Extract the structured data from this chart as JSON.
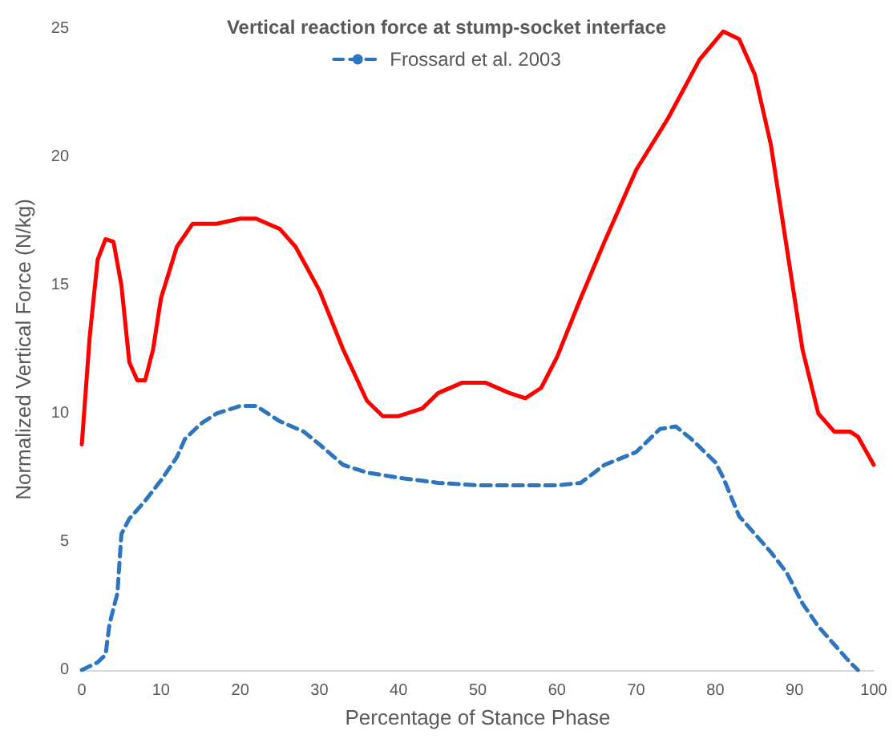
{
  "chart_data": {
    "type": "line",
    "title": "Vertical reaction force at stump-socket interface",
    "xlabel": "Percentage of Stance Phase",
    "ylabel": "Normalized Vertical Force (N/kg)",
    "xlim": [
      0,
      100
    ],
    "xticks": [
      0,
      10,
      20,
      30,
      40,
      50,
      60,
      70,
      80,
      90,
      100
    ],
    "ylim": [
      0,
      25
    ],
    "yticks": [
      0,
      5,
      10,
      15,
      20,
      25
    ],
    "grid": false,
    "legend": "top",
    "marker": "none",
    "series": [
      {
        "color": "#ff0000",
        "line_style": "solid",
        "x": [
          0,
          1,
          2,
          3,
          4,
          5,
          6,
          7,
          8,
          9,
          10,
          12,
          14,
          17,
          20,
          22,
          25,
          27,
          30,
          33,
          36,
          38,
          40,
          43,
          45,
          48,
          51,
          54,
          56,
          58,
          60,
          63,
          66,
          70,
          74,
          78,
          81,
          83,
          85,
          87,
          89,
          91,
          93,
          95,
          97,
          98,
          100
        ],
        "values": [
          8.8,
          13,
          16,
          16.8,
          16.7,
          15,
          12,
          11.3,
          11.3,
          12.5,
          14.5,
          16.5,
          17.4,
          17.4,
          17.6,
          17.6,
          17.2,
          16.5,
          14.8,
          12.5,
          10.5,
          9.9,
          9.9,
          10.2,
          10.8,
          11.2,
          11.2,
          10.8,
          10.6,
          11,
          12.2,
          14.5,
          16.7,
          19.5,
          21.5,
          23.8,
          24.9,
          24.6,
          23.2,
          20.5,
          16.5,
          12.5,
          10,
          9.3,
          9.3,
          9.1,
          8
        ]
      },
      {
        "name": "Frossard et al. 2003",
        "color": "#2e75c0",
        "line_style": "dashed",
        "x": [
          0,
          2,
          3,
          3.5,
          4.5,
          5,
          6,
          8,
          10,
          12,
          13,
          15,
          17,
          20,
          22,
          25,
          28,
          30,
          33,
          36,
          40,
          45,
          50,
          55,
          60,
          63,
          66,
          70,
          73,
          75,
          77,
          80,
          81,
          83,
          85,
          87,
          89,
          91,
          93,
          95,
          97,
          98
        ],
        "values": [
          0,
          0.3,
          0.6,
          1.8,
          3,
          5.3,
          5.9,
          6.6,
          7.4,
          8.3,
          9,
          9.6,
          10,
          10.3,
          10.3,
          9.7,
          9.3,
          8.8,
          8,
          7.7,
          7.5,
          7.3,
          7.2,
          7.2,
          7.2,
          7.3,
          8,
          8.5,
          9.4,
          9.5,
          9,
          8.1,
          7.5,
          6,
          5.3,
          4.6,
          3.8,
          2.6,
          1.7,
          1,
          0.3,
          0
        ]
      }
    ]
  }
}
